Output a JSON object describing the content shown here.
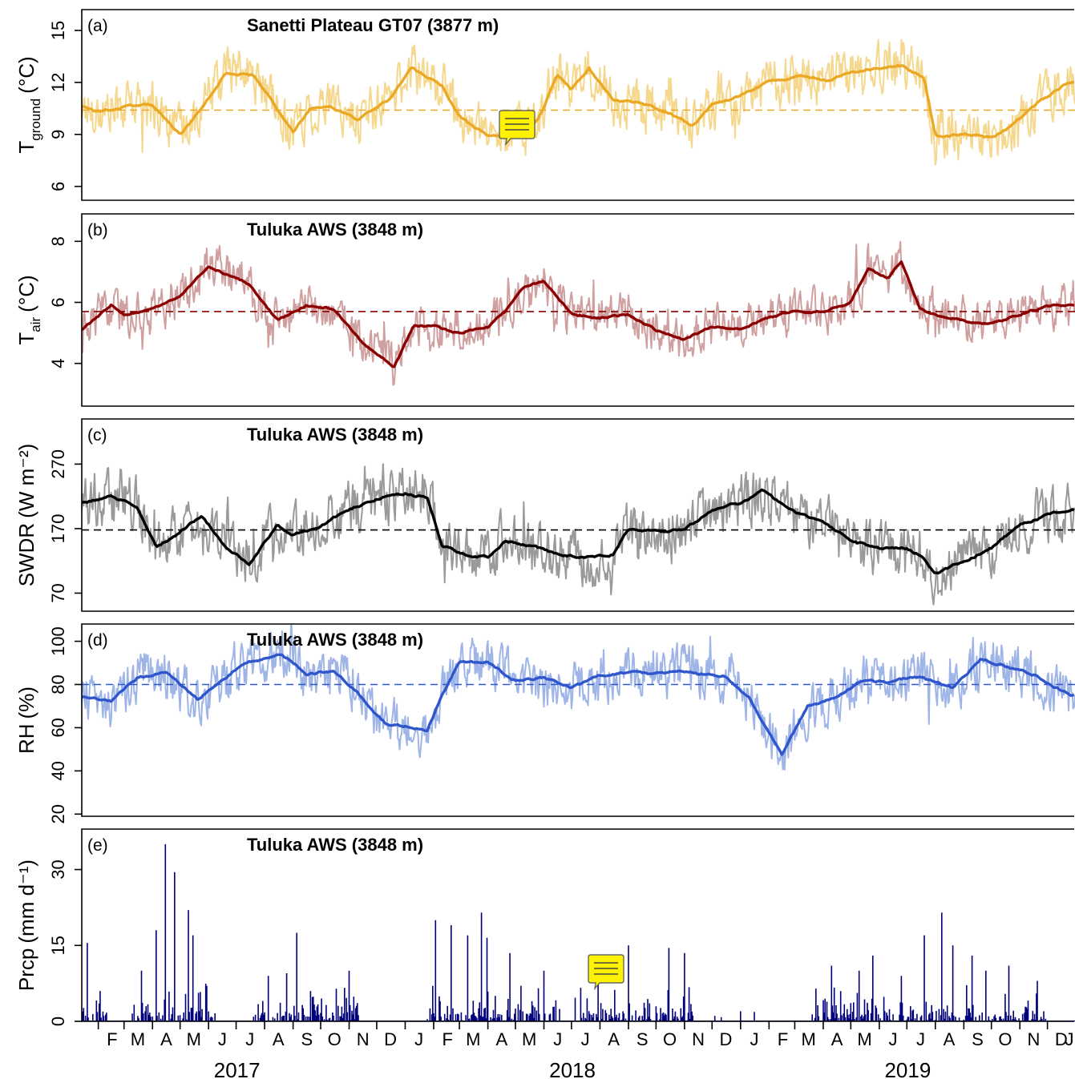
{
  "chart_data": [
    {
      "id": "a",
      "type": "line",
      "panel_label": "(a)",
      "title": "Sanetti Plateau GT07 (3877 m)",
      "ylabel_main": "T",
      "ylabel_sub": "ground",
      "ylabel_unit": "(°C)",
      "ylim": [
        5.2,
        16.2
      ],
      "yticks": [
        6,
        9,
        12,
        15
      ],
      "mean": 10.4,
      "noise": 1.1,
      "raw_color": "#f5d88e",
      "smooth_color": "#eba824",
      "has_comment_icon": true,
      "smooth": {
        "x": [
          "2017-01-14",
          "2017-02-01",
          "2017-03-01",
          "2017-04-01",
          "2017-05-01",
          "2017-05-25",
          "2017-06-20",
          "2017-07-20",
          "2017-09-01",
          "2017-09-20",
          "2017-10-10",
          "2017-11-10",
          "2017-12-15",
          "2018-01-08",
          "2018-02-10",
          "2018-03-01",
          "2018-04-01",
          "2018-04-20",
          "2018-05-15",
          "2018-06-01",
          "2018-06-15",
          "2018-07-01",
          "2018-07-20",
          "2018-08-15",
          "2018-09-15",
          "2018-10-15",
          "2018-11-10",
          "2018-12-01",
          "2018-12-30",
          "2019-02-01",
          "2019-03-10",
          "2019-04-05",
          "2019-05-01",
          "2019-06-01",
          "2019-06-25",
          "2019-07-20",
          "2019-08-01",
          "2019-09-01",
          "2019-10-01",
          "2019-10-20",
          "2019-11-25",
          "2019-12-25"
        ],
        "y": [
          10.6,
          10.3,
          10.6,
          10.7,
          9.0,
          10.5,
          12.6,
          12.4,
          9.2,
          10.5,
          10.6,
          9.9,
          11.0,
          12.8,
          11.8,
          10.0,
          8.9,
          9.0,
          9.1,
          10.5,
          12.4,
          11.6,
          12.8,
          11.0,
          10.8,
          10.2,
          9.5,
          10.7,
          11.2,
          12.0,
          12.4,
          12.1,
          12.6,
          12.8,
          13.0,
          12.2,
          8.9,
          9.0,
          8.8,
          9.4,
          11.0,
          12.0
        ]
      }
    },
    {
      "id": "b",
      "type": "line",
      "panel_label": "(b)",
      "title": "Tuluka AWS (3848 m)",
      "ylabel_main": "T",
      "ylabel_sub": "air",
      "ylabel_unit": "(°C)",
      "ylim": [
        2.6,
        8.9
      ],
      "yticks": [
        4,
        6,
        8
      ],
      "mean": 5.7,
      "noise": 0.55,
      "raw_color": "#d09f9f",
      "smooth_color": "#8b0000",
      "has_comment_icon": false,
      "smooth": {
        "x": [
          "2017-01-14",
          "2017-02-15",
          "2017-03-01",
          "2017-04-01",
          "2017-05-01",
          "2017-06-01",
          "2017-07-15",
          "2017-08-15",
          "2017-09-15",
          "2017-10-15",
          "2017-11-15",
          "2017-12-20",
          "2018-01-10",
          "2018-02-01",
          "2018-03-01",
          "2018-04-01",
          "2018-04-20",
          "2018-05-10",
          "2018-06-01",
          "2018-07-01",
          "2018-08-01",
          "2018-09-01",
          "2018-10-01",
          "2018-11-01",
          "2018-12-01",
          "2019-01-01",
          "2019-02-01",
          "2019-03-01",
          "2019-04-01",
          "2019-05-01",
          "2019-05-20",
          "2019-06-10",
          "2019-06-25",
          "2019-07-15",
          "2019-08-01",
          "2019-09-01",
          "2019-10-01",
          "2019-11-01",
          "2019-12-01",
          "2019-12-25"
        ],
        "y": [
          5.1,
          5.9,
          5.6,
          5.8,
          6.2,
          7.2,
          6.6,
          5.4,
          5.9,
          5.8,
          4.7,
          3.9,
          5.2,
          5.2,
          5.0,
          5.2,
          5.7,
          6.5,
          6.7,
          5.6,
          5.5,
          5.6,
          5.1,
          4.8,
          5.2,
          5.1,
          5.5,
          5.7,
          5.7,
          6.0,
          7.1,
          6.8,
          7.3,
          5.8,
          5.6,
          5.4,
          5.3,
          5.6,
          5.9,
          5.9
        ]
      }
    },
    {
      "id": "c",
      "type": "line",
      "panel_label": "(c)",
      "title": "Tuluka AWS (3848 m)",
      "ylabel_main": "SWDR",
      "ylabel_sub": "",
      "ylabel_unit": "(W m⁻²)",
      "ylim": [
        42,
        340
      ],
      "yticks": [
        70,
        170,
        270
      ],
      "mean": 168,
      "noise": 32,
      "raw_color": "#9a9a9a",
      "smooth_color": "#000000",
      "has_comment_icon": false,
      "smooth": {
        "x": [
          "2017-01-14",
          "2017-02-15",
          "2017-03-15",
          "2017-04-05",
          "2017-05-01",
          "2017-05-25",
          "2017-06-20",
          "2017-07-15",
          "2017-08-15",
          "2017-09-01",
          "2017-10-01",
          "2017-11-01",
          "2017-12-01",
          "2018-01-01",
          "2018-01-25",
          "2018-02-10",
          "2018-03-05",
          "2018-04-01",
          "2018-04-20",
          "2018-05-15",
          "2018-06-15",
          "2018-07-15",
          "2018-08-15",
          "2018-09-01",
          "2018-10-01",
          "2018-11-01",
          "2018-12-01",
          "2019-01-01",
          "2019-01-25",
          "2019-03-01",
          "2019-04-01",
          "2019-05-01",
          "2019-06-01",
          "2019-07-01",
          "2019-07-20",
          "2019-08-01",
          "2019-09-01",
          "2019-10-01",
          "2019-11-01",
          "2019-12-01",
          "2019-12-25"
        ],
        "y": [
          210,
          220,
          205,
          140,
          165,
          190,
          140,
          115,
          175,
          160,
          175,
          200,
          215,
          225,
          218,
          145,
          130,
          125,
          150,
          145,
          130,
          125,
          130,
          170,
          165,
          168,
          200,
          210,
          230,
          195,
          180,
          150,
          140,
          140,
          125,
          100,
          120,
          140,
          175,
          190,
          200
        ]
      }
    },
    {
      "id": "d",
      "type": "line",
      "panel_label": "(d)",
      "title": "Tuluka AWS (3848 m)",
      "ylabel_main": "RH",
      "ylabel_sub": "",
      "ylabel_unit": "(%)",
      "ylim": [
        19,
        108
      ],
      "yticks": [
        20,
        40,
        60,
        80,
        100
      ],
      "mean": 80,
      "noise": 9,
      "raw_color": "#9fb5e8",
      "smooth_color": "#3056cc",
      "has_comment_icon": false,
      "smooth": {
        "x": [
          "2017-01-14",
          "2017-02-15",
          "2017-03-15",
          "2017-04-15",
          "2017-05-20",
          "2017-06-15",
          "2017-07-10",
          "2017-08-20",
          "2017-09-15",
          "2017-10-15",
          "2017-11-10",
          "2017-12-10",
          "2018-01-10",
          "2018-01-25",
          "2018-02-10",
          "2018-03-01",
          "2018-04-01",
          "2018-05-01",
          "2018-06-01",
          "2018-07-01",
          "2018-08-01",
          "2018-09-01",
          "2018-10-01",
          "2018-11-01",
          "2018-12-15",
          "2019-01-10",
          "2019-01-25",
          "2019-02-15",
          "2019-03-15",
          "2019-04-10",
          "2019-05-15",
          "2019-06-10",
          "2019-07-15",
          "2019-08-20",
          "2019-09-20",
          "2019-10-20",
          "2019-11-20",
          "2019-12-25"
        ],
        "y": [
          74,
          72,
          83,
          86,
          73,
          82,
          90,
          94,
          85,
          86,
          76,
          62,
          60,
          58,
          75,
          90,
          90,
          82,
          83,
          78,
          84,
          86,
          85,
          86,
          84,
          74,
          62,
          48,
          70,
          73,
          82,
          81,
          84,
          78,
          92,
          88,
          84,
          75
        ]
      }
    },
    {
      "id": "e",
      "type": "bar",
      "panel_label": "(e)",
      "title": "Tuluka AWS (3848 m)",
      "ylabel_main": "Prcp",
      "ylabel_sub": "",
      "ylabel_unit": "(mm d⁻¹)",
      "ylim": [
        0,
        38
      ],
      "yticks": [
        0,
        15,
        30
      ],
      "bar_color": "#00007a",
      "has_comment_icon": true,
      "peaks": {
        "x": [
          "2017-01-20",
          "2017-03-20",
          "2017-04-05",
          "2017-04-15",
          "2017-04-25",
          "2017-05-10",
          "2017-05-15",
          "2017-05-30",
          "2017-08-05",
          "2017-08-25",
          "2017-09-05",
          "2017-09-20",
          "2017-11-01",
          "2018-02-03",
          "2018-02-20",
          "2018-03-10",
          "2018-03-25",
          "2018-03-31",
          "2018-04-25",
          "2018-06-01",
          "2018-09-01",
          "2018-10-15",
          "2018-11-01",
          "2019-01-01",
          "2019-04-10",
          "2019-05-10",
          "2019-05-25",
          "2019-06-25",
          "2019-07-20",
          "2019-08-08",
          "2019-08-20",
          "2019-09-10",
          "2019-09-25",
          "2019-10-20",
          "2019-11-20"
        ],
        "y": [
          15.5,
          10,
          18,
          35,
          29.5,
          22,
          17,
          7,
          9,
          9.5,
          17.5,
          6,
          10,
          20,
          19,
          17,
          21.5,
          16.5,
          13.5,
          10,
          15,
          14.5,
          13.5,
          2,
          11,
          10,
          13,
          9,
          17,
          21.5,
          15,
          13,
          10,
          11,
          8
        ]
      }
    }
  ],
  "x_axis": {
    "start": "2017-01-14",
    "end": "2019-12-31",
    "month_letters": [
      "J",
      "F",
      "M",
      "A",
      "M",
      "J",
      "J",
      "A",
      "S",
      "O",
      "N",
      "D"
    ],
    "years": [
      {
        "label": "2017",
        "center": "2017-07-02"
      },
      {
        "label": "2018",
        "center": "2018-07-02"
      },
      {
        "label": "2019",
        "center": "2019-07-02"
      }
    ]
  }
}
